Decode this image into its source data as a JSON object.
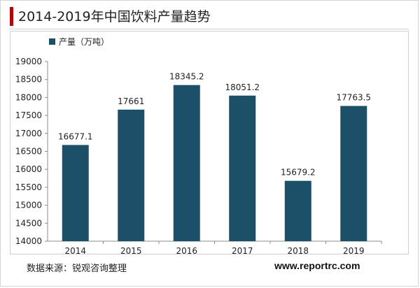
{
  "header": {
    "title": "2014-2019年中国饮料产量趋势"
  },
  "footer": {
    "source": "数据来源：锐观咨询整理",
    "website": "www.reportrc.com"
  },
  "chart_data": {
    "type": "bar",
    "title": "2014-2019年中国饮料产量趋势",
    "xlabel": "",
    "ylabel": "",
    "categories": [
      "2014",
      "2015",
      "2016",
      "2017",
      "2018",
      "2019"
    ],
    "series": [
      {
        "name": "产量（万吨）",
        "values": [
          16677.1,
          17661,
          18345.2,
          18051.2,
          15679.2,
          17763.5
        ],
        "labels": [
          "16677.1",
          "17661",
          "18345.2",
          "18051.2",
          "15679.2",
          "17763.5"
        ]
      }
    ],
    "ylim": [
      14000,
      19000
    ],
    "yticks": [
      14000,
      14500,
      15000,
      15500,
      16000,
      16500,
      17000,
      17500,
      18000,
      18500,
      19000
    ],
    "legend": "top-left",
    "grid": false,
    "colors": {
      "bar": "#1b5068"
    }
  }
}
